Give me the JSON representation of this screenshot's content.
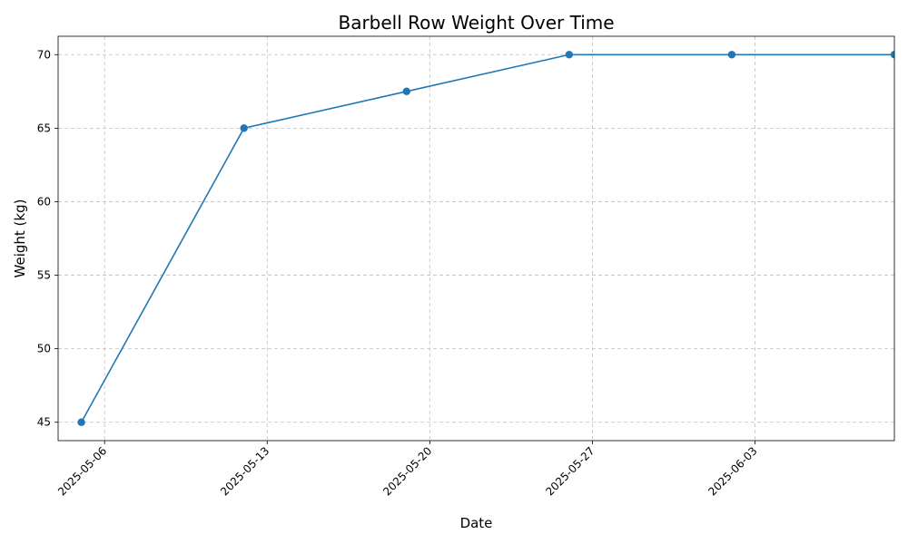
{
  "chart_data": {
    "type": "line",
    "title": "Barbell Row Weight Over Time",
    "xlabel": "Date",
    "ylabel": "Weight (kg)",
    "x_type": "date",
    "xlim": [
      "2025-05-04",
      "2025-06-09"
    ],
    "ylim": [
      43.75,
      71.25
    ],
    "x_ticks": [
      "2025-05-06",
      "2025-05-13",
      "2025-05-20",
      "2025-05-27",
      "2025-06-03"
    ],
    "y_ticks": [
      45,
      50,
      55,
      60,
      65,
      70
    ],
    "grid": true,
    "series": [
      {
        "color": "#1f77b4",
        "marker": "circle",
        "x": [
          "2025-05-05",
          "2025-05-12",
          "2025-05-19",
          "2025-05-26",
          "2025-06-02",
          "2025-06-09"
        ],
        "y": [
          45,
          65,
          67.5,
          70,
          70,
          70
        ]
      }
    ]
  }
}
